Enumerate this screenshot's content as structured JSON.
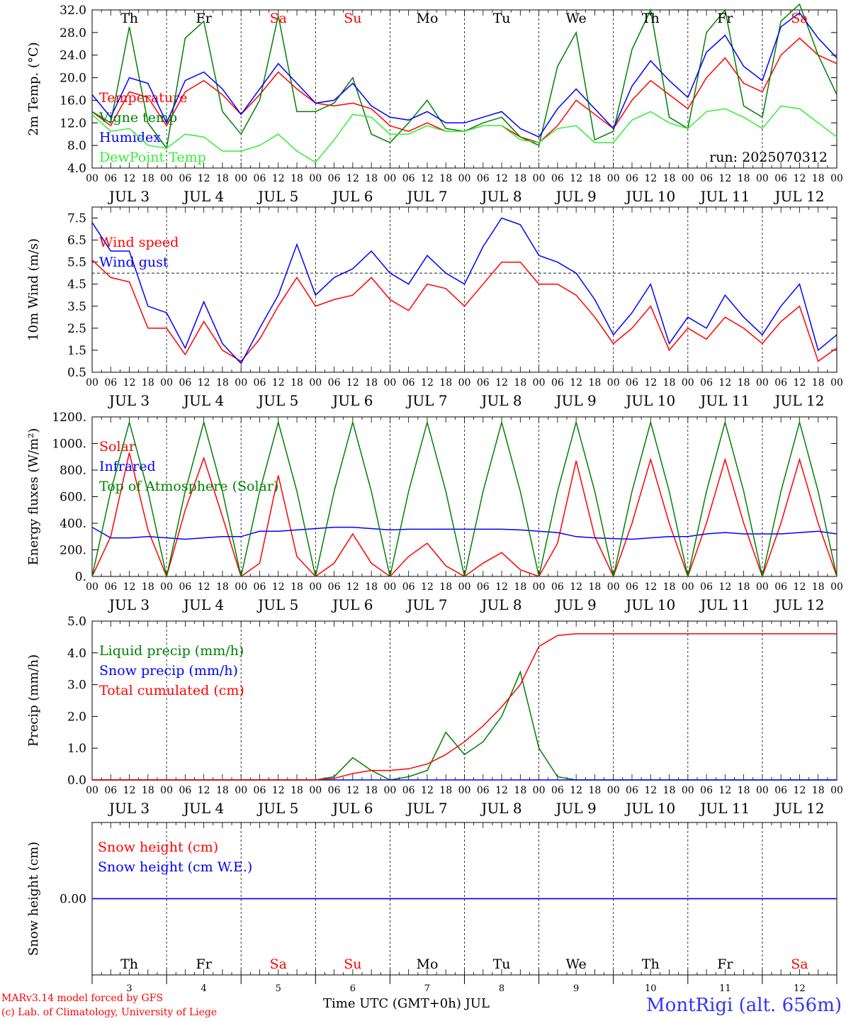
{
  "chart_data": [
    {
      "type": "line",
      "ylabel": "2m Temp. (°C)",
      "ylim": [
        4.0,
        32.0
      ],
      "yticks": [
        "4.0",
        "8.0",
        "12.0",
        "16.0",
        "20.0",
        "24.0",
        "28.0",
        "32.0"
      ],
      "annotation": "run: 2025070312",
      "x_hours": [
        0,
        6,
        12,
        18,
        24,
        30,
        36,
        42,
        48,
        54,
        60,
        66,
        72,
        78,
        84,
        90,
        96,
        102,
        108,
        114,
        120,
        126,
        132,
        138,
        144,
        150,
        156,
        162,
        168,
        174,
        180,
        186,
        192,
        198,
        204,
        210,
        216,
        222,
        228,
        234,
        240
      ],
      "series": [
        {
          "name": "Temperature",
          "color": "#ff0000",
          "values": [
            14.0,
            11.5,
            17.5,
            16.5,
            11.5,
            17.5,
            19.5,
            17.0,
            13.5,
            17.0,
            21.0,
            18.0,
            15.5,
            15.0,
            15.5,
            14.5,
            11.5,
            10.5,
            12.0,
            10.5,
            10.5,
            11.5,
            11.5,
            9.5,
            8.5,
            11.5,
            16.0,
            13.5,
            11.0,
            16.0,
            19.5,
            17.0,
            14.5,
            20.0,
            23.5,
            19.0,
            17.5,
            24.0,
            27.0,
            24.0,
            22.5
          ]
        },
        {
          "name": "Vigne temp",
          "color": "#008000",
          "values": [
            14.0,
            12.0,
            29.0,
            12.0,
            7.5,
            27.0,
            30.0,
            14.0,
            10.0,
            16.0,
            31.0,
            14.0,
            14.0,
            15.5,
            20.0,
            10.0,
            8.5,
            12.0,
            16.0,
            11.0,
            10.5,
            12.0,
            13.0,
            9.5,
            8.0,
            22.0,
            28.0,
            9.0,
            10.5,
            25.0,
            32.0,
            13.0,
            11.0,
            28.0,
            32.0,
            15.0,
            13.0,
            30.0,
            33.0,
            24.0,
            17.0
          ]
        },
        {
          "name": "Humidex",
          "color": "#0000ff",
          "values": [
            17.0,
            13.0,
            20.0,
            19.0,
            12.0,
            19.5,
            21.0,
            18.0,
            13.5,
            18.0,
            22.5,
            19.0,
            15.5,
            16.0,
            19.0,
            15.0,
            13.0,
            12.5,
            14.0,
            12.0,
            12.0,
            13.0,
            14.0,
            11.0,
            9.5,
            14.5,
            18.0,
            14.5,
            11.0,
            18.5,
            23.0,
            19.5,
            16.5,
            24.5,
            27.5,
            22.0,
            19.5,
            29.0,
            31.5,
            27.0,
            23.5
          ]
        },
        {
          "name": "DewPoint Temp",
          "color": "#33ee33",
          "values": [
            13.5,
            10.5,
            11.0,
            8.0,
            7.5,
            10.0,
            9.5,
            7.0,
            7.0,
            8.0,
            10.0,
            7.0,
            5.0,
            9.0,
            13.5,
            13.0,
            10.0,
            10.0,
            11.5,
            10.5,
            10.5,
            11.5,
            11.5,
            9.0,
            8.5,
            11.0,
            11.5,
            8.5,
            8.5,
            12.5,
            14.0,
            12.0,
            11.0,
            14.0,
            14.5,
            13.0,
            11.0,
            15.0,
            14.5,
            12.0,
            9.5
          ]
        }
      ],
      "day_labels": [
        {
          "text": "Th",
          "color": "#000000"
        },
        {
          "text": "Fr",
          "color": "#000000"
        },
        {
          "text": "Sa",
          "color": "#ff0000"
        },
        {
          "text": "Su",
          "color": "#ff0000"
        },
        {
          "text": "Mo",
          "color": "#000000"
        },
        {
          "text": "Tu",
          "color": "#000000"
        },
        {
          "text": "We",
          "color": "#000000"
        },
        {
          "text": "Th",
          "color": "#000000"
        },
        {
          "text": "Fr",
          "color": "#000000"
        },
        {
          "text": "Sa",
          "color": "#ff0000"
        }
      ]
    },
    {
      "type": "line",
      "ylabel": "10m Wind (m/s)",
      "ylim": [
        0.5,
        8.0
      ],
      "yticks": [
        "0.5",
        "1.5",
        "2.5",
        "3.5",
        "4.5",
        "5.5",
        "6.5",
        "7.5"
      ],
      "reference_line": 5.0,
      "x_hours": [
        0,
        6,
        12,
        18,
        24,
        30,
        36,
        42,
        48,
        54,
        60,
        66,
        72,
        78,
        84,
        90,
        96,
        102,
        108,
        114,
        120,
        126,
        132,
        138,
        144,
        150,
        156,
        162,
        168,
        174,
        180,
        186,
        192,
        198,
        204,
        210,
        216,
        222,
        228,
        234,
        240
      ],
      "series": [
        {
          "name": "Wind speed",
          "color": "#ff0000",
          "values": [
            5.6,
            4.8,
            4.6,
            2.5,
            2.5,
            1.3,
            2.8,
            1.5,
            1.0,
            2.0,
            3.5,
            4.8,
            3.5,
            3.8,
            4.0,
            4.8,
            3.8,
            3.3,
            4.5,
            4.3,
            3.5,
            4.5,
            5.5,
            5.5,
            4.5,
            4.5,
            4.0,
            3.0,
            1.8,
            2.5,
            3.5,
            1.5,
            2.5,
            2.0,
            3.0,
            2.5,
            1.8,
            2.8,
            3.5,
            1.0,
            1.6
          ]
        },
        {
          "name": "Wind gust",
          "color": "#0000ff",
          "values": [
            7.3,
            6.0,
            6.0,
            3.5,
            3.2,
            1.6,
            3.7,
            1.8,
            0.9,
            2.5,
            4.0,
            6.3,
            4.0,
            4.8,
            5.2,
            6.0,
            5.0,
            4.5,
            5.8,
            5.0,
            4.5,
            6.2,
            7.5,
            7.2,
            5.8,
            5.5,
            5.0,
            3.8,
            2.2,
            3.2,
            4.5,
            1.8,
            3.0,
            2.5,
            4.0,
            3.0,
            2.2,
            3.5,
            4.5,
            1.5,
            2.2
          ]
        }
      ]
    },
    {
      "type": "line",
      "ylabel": "Energy fluxes (W/m²)",
      "ylim": [
        0,
        1200
      ],
      "yticks": [
        "0.",
        "200.",
        "400.",
        "600.",
        "800.",
        "1000.",
        "1200."
      ],
      "x_hours": [
        0,
        6,
        12,
        18,
        24,
        30,
        36,
        42,
        48,
        54,
        60,
        66,
        72,
        78,
        84,
        90,
        96,
        102,
        108,
        114,
        120,
        126,
        132,
        138,
        144,
        150,
        156,
        162,
        168,
        174,
        180,
        186,
        192,
        198,
        204,
        210,
        216,
        222,
        228,
        234,
        240
      ],
      "series": [
        {
          "name": "Solar",
          "color": "#ff0000",
          "values": [
            0,
            300,
            930,
            350,
            0,
            500,
            890,
            450,
            0,
            100,
            760,
            150,
            0,
            100,
            320,
            100,
            0,
            150,
            250,
            80,
            0,
            100,
            180,
            50,
            0,
            250,
            870,
            300,
            0,
            400,
            880,
            400,
            0,
            400,
            880,
            400,
            0,
            400,
            880,
            400,
            0
          ]
        },
        {
          "name": "Infrared",
          "color": "#0000ff",
          "values": [
            370,
            290,
            290,
            300,
            290,
            280,
            290,
            300,
            300,
            340,
            340,
            350,
            360,
            370,
            370,
            360,
            350,
            355,
            355,
            355,
            355,
            355,
            355,
            350,
            340,
            330,
            300,
            290,
            285,
            280,
            290,
            300,
            300,
            320,
            330,
            320,
            320,
            320,
            330,
            340,
            320
          ]
        },
        {
          "name": "Top of Atmosphere (Solar)",
          "color": "#008000",
          "values": [
            0,
            640,
            1160,
            640,
            0,
            640,
            1160,
            640,
            0,
            640,
            1160,
            640,
            0,
            640,
            1160,
            640,
            0,
            640,
            1160,
            640,
            0,
            640,
            1160,
            640,
            0,
            640,
            1160,
            640,
            0,
            640,
            1160,
            640,
            0,
            640,
            1160,
            640,
            0,
            640,
            1160,
            640,
            0
          ]
        }
      ]
    },
    {
      "type": "line",
      "ylabel": "Precip (mm/h)",
      "ylim": [
        0.0,
        5.0
      ],
      "yticks": [
        "0.0",
        "1.0",
        "2.0",
        "3.0",
        "4.0",
        "5.0"
      ],
      "x_hours": [
        0,
        6,
        12,
        18,
        24,
        30,
        36,
        42,
        48,
        54,
        60,
        66,
        72,
        78,
        84,
        90,
        96,
        102,
        108,
        114,
        120,
        126,
        132,
        138,
        144,
        150,
        156,
        162,
        168,
        174,
        180,
        186,
        192,
        198,
        204,
        210,
        216,
        222,
        228,
        234,
        240
      ],
      "series": [
        {
          "name": "Liquid precip (mm/h)",
          "color": "#008000",
          "values": [
            0,
            0,
            0,
            0,
            0,
            0,
            0,
            0,
            0,
            0,
            0,
            0,
            0,
            0.1,
            0.7,
            0.3,
            0,
            0.1,
            0.3,
            1.5,
            0.8,
            1.2,
            2.0,
            3.4,
            1.0,
            0.1,
            0,
            0,
            0,
            0,
            0,
            0,
            0,
            0,
            0,
            0,
            0,
            0,
            0,
            0,
            0
          ]
        },
        {
          "name": "Snow precip (mm/h)",
          "color": "#0000ff",
          "values": [
            0,
            0,
            0,
            0,
            0,
            0,
            0,
            0,
            0,
            0,
            0,
            0,
            0,
            0,
            0,
            0,
            0,
            0,
            0,
            0,
            0,
            0,
            0,
            0,
            0,
            0,
            0,
            0,
            0,
            0,
            0,
            0,
            0,
            0,
            0,
            0,
            0,
            0,
            0,
            0,
            0
          ]
        },
        {
          "name": "Total cumulated (cm)",
          "color": "#ff0000",
          "values": [
            0,
            0,
            0,
            0,
            0,
            0,
            0,
            0,
            0,
            0,
            0,
            0,
            0,
            0.05,
            0.2,
            0.3,
            0.3,
            0.35,
            0.5,
            0.8,
            1.2,
            1.7,
            2.3,
            3.0,
            4.2,
            4.55,
            4.6,
            4.6,
            4.6,
            4.6,
            4.6,
            4.6,
            4.6,
            4.6,
            4.6,
            4.6,
            4.6,
            4.6,
            4.6,
            4.6,
            4.6
          ]
        }
      ]
    },
    {
      "type": "line",
      "ylabel": "Snow height (cm)",
      "yticks": [
        "0.00"
      ],
      "x_hours": [
        0,
        240
      ],
      "series": [
        {
          "name": "Snow height (cm)",
          "color": "#ff0000",
          "values": [
            0,
            0
          ]
        },
        {
          "name": "Snow height (cm W.E.)",
          "color": "#0000ff",
          "values": [
            0,
            0
          ]
        }
      ]
    }
  ],
  "axis": {
    "hour_labels": [
      "00",
      "06",
      "12",
      "18"
    ],
    "end_label": "00",
    "date_labels": [
      "JUL  3",
      "JUL  4",
      "JUL  5",
      "JUL  6",
      "JUL  7",
      "JUL  8",
      "JUL  9",
      "JUL 10",
      "JUL 11",
      "JUL 12"
    ],
    "day_numbers": [
      "3",
      "4",
      "5",
      "6",
      "7",
      "8",
      "9",
      "10",
      "11",
      "12"
    ]
  },
  "footer": {
    "model_line": "MARv3.14 model forced by GFS",
    "credit_line": "(c) Lab. of Climatology, University of Liege",
    "xlabel": "Time UTC (GMT+0h) JUL",
    "station": "MontRigi (alt. 656m)"
  }
}
